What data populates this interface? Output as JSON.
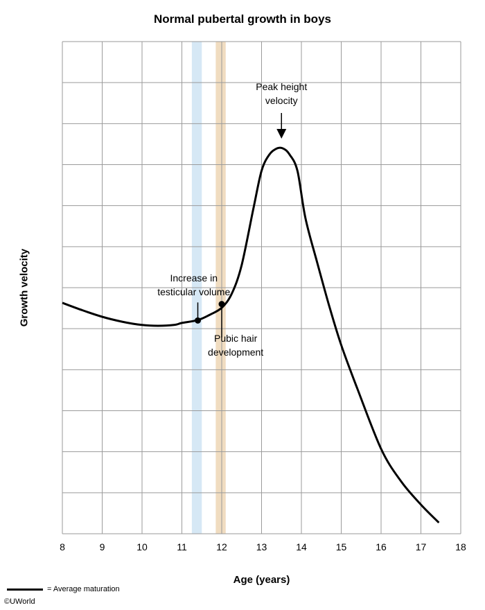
{
  "chart_data": {
    "type": "line",
    "title": "Normal pubertal growth in boys",
    "xlabel": "Age (years)",
    "ylabel": "Growth velocity",
    "xlim": [
      8,
      18
    ],
    "x_ticks": [
      "8",
      "9",
      "10",
      "11",
      "12",
      "13",
      "14",
      "15",
      "16",
      "17",
      "18"
    ],
    "y_ticks_labeled": false,
    "grid": true,
    "series": [
      {
        "name": "Average maturation",
        "color": "#000000",
        "x": [
          8.0,
          8.5,
          9.0,
          9.5,
          10.0,
          10.4,
          10.8,
          11.0,
          11.4,
          11.7,
          12.0,
          12.25,
          12.5,
          12.8,
          13.0,
          13.2,
          13.4,
          13.55,
          13.7,
          13.9,
          14.1,
          14.4,
          14.7,
          15.0,
          15.4,
          16.0,
          16.5,
          17.0,
          17.45
        ],
        "y": [
          5.63,
          5.45,
          5.29,
          5.17,
          5.09,
          5.07,
          5.09,
          5.14,
          5.21,
          5.34,
          5.51,
          5.85,
          6.55,
          7.95,
          8.85,
          9.25,
          9.4,
          9.39,
          9.25,
          8.85,
          7.7,
          6.6,
          5.55,
          4.6,
          3.55,
          2.07,
          1.28,
          0.71,
          0.27
        ]
      }
    ],
    "bands": [
      {
        "from": 11.25,
        "to": 11.5,
        "color": "#d6e8f5"
      },
      {
        "from": 11.85,
        "to": 12.1,
        "color": "#f0dcc0"
      }
    ],
    "points": [
      {
        "x": 11.4,
        "y": 5.2
      },
      {
        "x": 12.0,
        "y": 5.6
      }
    ],
    "annotations": [
      {
        "lines": [
          "Increase in",
          "testicular volume"
        ]
      },
      {
        "lines": [
          "Pubic hair",
          "development"
        ]
      },
      {
        "lines": [
          "Peak height",
          "velocity"
        ]
      }
    ],
    "legend": {
      "position": "bottom-left",
      "label": "= Average maturation"
    }
  },
  "copyright": "©UWorld"
}
